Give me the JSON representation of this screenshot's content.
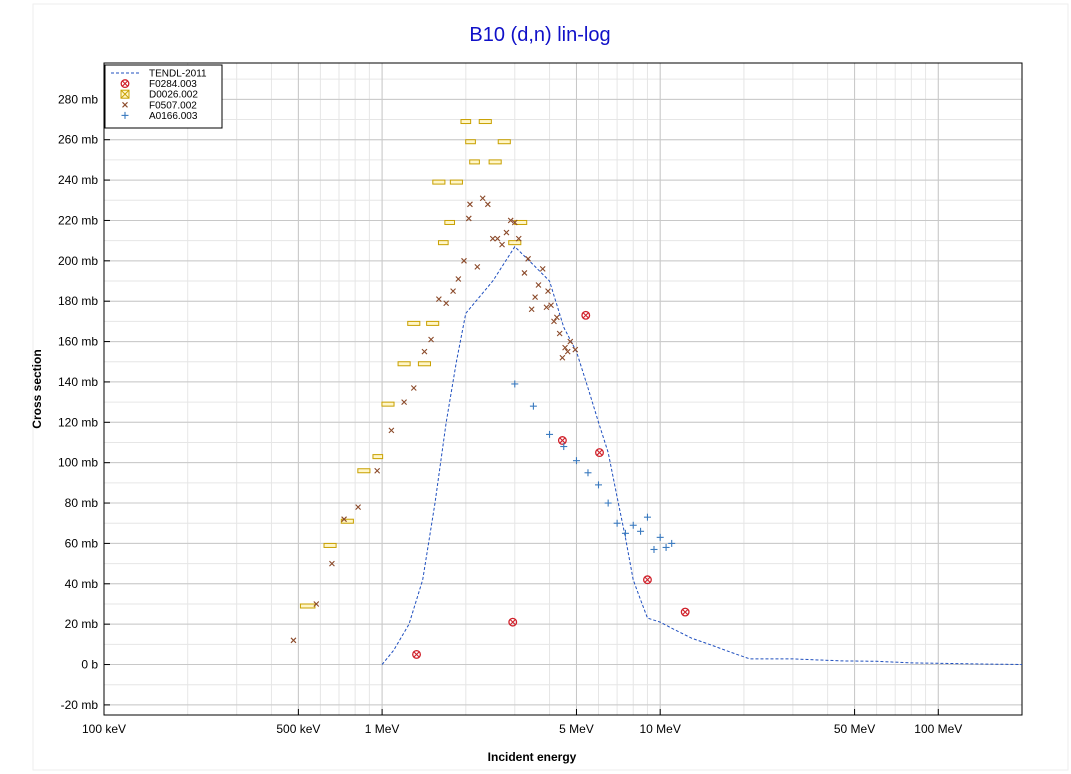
{
  "chart_data": {
    "type": "scatter",
    "title": "B10 (d,n) lin-log",
    "xlabel": "Incident energy",
    "ylabel": "Cross section",
    "x_scale": "log",
    "x_unit": "MeV",
    "y_unit": "mb",
    "xlim": [
      0.1,
      200
    ],
    "ylim": [
      -25,
      298
    ],
    "grid": true,
    "legend_position": "top-left",
    "x_ticks": [
      {
        "value": 0.1,
        "label": "100 keV"
      },
      {
        "value": 0.5,
        "label": "500 keV"
      },
      {
        "value": 1,
        "label": "1 MeV"
      },
      {
        "value": 5,
        "label": "5 MeV"
      },
      {
        "value": 10,
        "label": "10 MeV"
      },
      {
        "value": 50,
        "label": "50 MeV"
      },
      {
        "value": 100,
        "label": "100 MeV"
      }
    ],
    "y_ticks": [
      {
        "value": -20,
        "label": "-20 mb"
      },
      {
        "value": 0,
        "label": "0 b"
      },
      {
        "value": 20,
        "label": "20 mb"
      },
      {
        "value": 40,
        "label": "40 mb"
      },
      {
        "value": 60,
        "label": "60 mb"
      },
      {
        "value": 80,
        "label": "80 mb"
      },
      {
        "value": 100,
        "label": "100 mb"
      },
      {
        "value": 120,
        "label": "120 mb"
      },
      {
        "value": 140,
        "label": "140 mb"
      },
      {
        "value": 160,
        "label": "160 mb"
      },
      {
        "value": 180,
        "label": "180 mb"
      },
      {
        "value": 200,
        "label": "200 mb"
      },
      {
        "value": 220,
        "label": "220 mb"
      },
      {
        "value": 240,
        "label": "240 mb"
      },
      {
        "value": 260,
        "label": "260 mb"
      },
      {
        "value": 280,
        "label": "280 mb"
      }
    ],
    "series": [
      {
        "name": "TENDL-2011",
        "kind": "line",
        "color": "#1f4fbf",
        "points": [
          [
            1.0,
            0
          ],
          [
            1.1,
            7
          ],
          [
            1.25,
            20
          ],
          [
            1.4,
            42
          ],
          [
            1.55,
            80
          ],
          [
            1.7,
            120
          ],
          [
            1.85,
            150
          ],
          [
            2.0,
            174
          ],
          [
            2.5,
            190
          ],
          [
            3.0,
            207
          ],
          [
            3.5,
            198
          ],
          [
            4.0,
            190
          ],
          [
            4.5,
            167
          ],
          [
            5.0,
            155
          ],
          [
            5.5,
            137
          ],
          [
            6.0,
            120
          ],
          [
            6.5,
            105
          ],
          [
            7.0,
            83
          ],
          [
            7.5,
            63
          ],
          [
            8.0,
            42
          ],
          [
            8.5,
            32
          ],
          [
            9.0,
            23
          ],
          [
            10.0,
            21
          ],
          [
            11.0,
            18
          ],
          [
            13.0,
            13
          ],
          [
            15.0,
            10
          ],
          [
            18.0,
            6
          ],
          [
            21.0,
            2.8
          ],
          [
            30.0,
            2.8
          ],
          [
            45.0,
            1.8
          ],
          [
            60.0,
            1.6
          ],
          [
            80.0,
            0.8
          ],
          [
            100.0,
            0.6
          ],
          [
            150.0,
            0.2
          ],
          [
            200.0,
            0
          ]
        ]
      },
      {
        "name": "F0284.003",
        "kind": "circle-x",
        "color": "#d0202a",
        "points": [
          [
            1.33,
            5
          ],
          [
            2.95,
            21
          ],
          [
            4.45,
            111
          ],
          [
            5.4,
            173
          ],
          [
            6.05,
            105
          ],
          [
            9.0,
            42
          ],
          [
            12.3,
            26
          ]
        ]
      },
      {
        "name": "D0026.002",
        "kind": "box",
        "color": "#c8a000",
        "points": [
          [
            0.54,
            29,
            0.06
          ],
          [
            0.65,
            59,
            0.05
          ],
          [
            0.75,
            71,
            0.05
          ],
          [
            0.86,
            96,
            0.05
          ],
          [
            0.965,
            103,
            0.04
          ],
          [
            1.05,
            129,
            0.05
          ],
          [
            1.2,
            149,
            0.05
          ],
          [
            1.3,
            169,
            0.05
          ],
          [
            1.42,
            149,
            0.05
          ],
          [
            1.52,
            169,
            0.05
          ],
          [
            1.6,
            239,
            0.05
          ],
          [
            1.66,
            209,
            0.04
          ],
          [
            1.75,
            219,
            0.04
          ],
          [
            1.85,
            239,
            0.05
          ],
          [
            2.0,
            269,
            0.04
          ],
          [
            2.08,
            259,
            0.04
          ],
          [
            2.15,
            249,
            0.04
          ],
          [
            2.35,
            269,
            0.05
          ],
          [
            2.55,
            249,
            0.05
          ],
          [
            2.75,
            259,
            0.05
          ],
          [
            3.0,
            209,
            0.05
          ],
          [
            3.15,
            219,
            0.05
          ]
        ]
      },
      {
        "name": "F0507.002",
        "kind": "x",
        "color": "#8b4a2a",
        "points": [
          [
            0.48,
            12
          ],
          [
            0.58,
            30
          ],
          [
            0.66,
            50
          ],
          [
            0.73,
            72
          ],
          [
            0.82,
            78
          ],
          [
            0.96,
            96
          ],
          [
            1.08,
            116
          ],
          [
            1.2,
            130
          ],
          [
            1.3,
            137
          ],
          [
            1.42,
            155
          ],
          [
            1.5,
            161
          ],
          [
            1.6,
            181
          ],
          [
            1.7,
            179
          ],
          [
            1.8,
            185
          ],
          [
            1.88,
            191
          ],
          [
            1.97,
            200
          ],
          [
            2.05,
            221
          ],
          [
            2.07,
            228
          ],
          [
            2.2,
            197
          ],
          [
            2.3,
            231
          ],
          [
            2.4,
            228
          ],
          [
            2.5,
            211
          ],
          [
            2.6,
            211
          ],
          [
            2.7,
            208
          ],
          [
            2.8,
            214
          ],
          [
            2.9,
            220
          ],
          [
            3.0,
            219
          ],
          [
            3.1,
            211
          ],
          [
            3.25,
            194
          ],
          [
            3.35,
            201
          ],
          [
            3.45,
            176
          ],
          [
            3.55,
            182
          ],
          [
            3.65,
            188
          ],
          [
            3.78,
            196
          ],
          [
            3.9,
            177
          ],
          [
            3.95,
            185
          ],
          [
            4.05,
            178
          ],
          [
            4.15,
            170
          ],
          [
            4.25,
            172
          ],
          [
            4.35,
            164
          ],
          [
            4.45,
            152
          ],
          [
            4.55,
            157
          ],
          [
            4.65,
            155
          ],
          [
            4.75,
            160
          ],
          [
            4.95,
            156
          ]
        ]
      },
      {
        "name": "A0166.003",
        "kind": "plus",
        "color": "#3a7abf",
        "points": [
          [
            3.0,
            139
          ],
          [
            3.5,
            128
          ],
          [
            4.0,
            114
          ],
          [
            4.5,
            108
          ],
          [
            5.0,
            101
          ],
          [
            5.5,
            95
          ],
          [
            6.0,
            89
          ],
          [
            6.5,
            80
          ],
          [
            7.0,
            70
          ],
          [
            7.5,
            65
          ],
          [
            8.0,
            69
          ],
          [
            8.5,
            66
          ],
          [
            9.0,
            73
          ],
          [
            9.5,
            57
          ],
          [
            10.0,
            63
          ],
          [
            10.5,
            58
          ],
          [
            11.0,
            60
          ]
        ]
      }
    ]
  }
}
